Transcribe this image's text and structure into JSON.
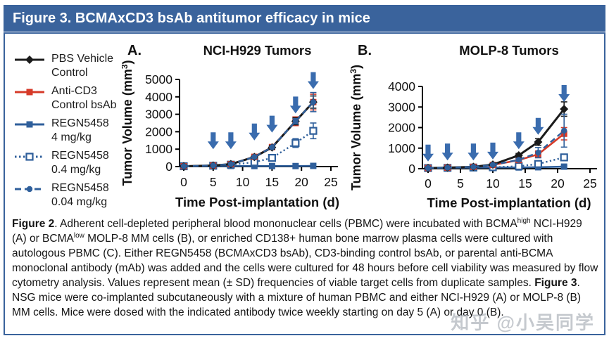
{
  "title_bar": {
    "text": "Figure 3. BCMAxCD3 bsAb antitumor efficacy in mice"
  },
  "colors": {
    "frame_blue": "#3a639c",
    "series_black": "#1b1b1b",
    "series_red": "#d63a28",
    "series_blue": "#2f5f9b",
    "arrow_blue": "#3a6cae"
  },
  "legend": {
    "items": [
      {
        "lines": [
          "PBS Vehicle",
          "Control"
        ],
        "color_key": "series_black",
        "line": "solid",
        "marker": "diamond"
      },
      {
        "lines": [
          "Anti-CD3",
          "Control bsAb"
        ],
        "color_key": "series_red",
        "line": "solid",
        "marker": "square"
      },
      {
        "lines": [
          "REGN5458",
          "4 mg/kg"
        ],
        "color_key": "series_blue",
        "line": "solid",
        "marker": "square"
      },
      {
        "lines": [
          "REGN5458",
          "0.4 mg/kg"
        ],
        "color_key": "series_blue",
        "line": "dotted",
        "marker": "square-open"
      },
      {
        "lines": [
          "REGN5458",
          "0.04 mg/kg"
        ],
        "color_key": "series_blue",
        "line": "dashed",
        "marker": "circle"
      }
    ]
  },
  "chart_data": [
    {
      "type": "line",
      "panel": "A.",
      "title": "NCI-H929 Tumors",
      "xlabel": "Time Post-implantation (d)",
      "ylabel": "Tumor Volume (mm³)",
      "xlim": [
        0,
        25
      ],
      "ylim": [
        0,
        5000
      ],
      "xticks": [
        0,
        5,
        10,
        15,
        20,
        25
      ],
      "yticks": [
        0,
        1000,
        2000,
        3000,
        4000,
        5000
      ],
      "grid": false,
      "x": [
        0,
        5,
        8,
        12,
        15,
        19,
        22
      ],
      "dose_arrow_days": [
        5,
        8,
        12,
        15,
        19,
        22
      ],
      "dose_arrow_tip_y": [
        1000,
        1000,
        1500,
        1950,
        3050,
        4450
      ],
      "series": [
        {
          "name": "REGN5458 4 mg/kg",
          "color_key": "series_blue",
          "line": "solid",
          "marker": "square",
          "values": [
            20,
            25,
            35,
            30,
            30,
            30,
            40
          ],
          "errors": [
            0,
            0,
            0,
            0,
            0,
            0,
            0
          ]
        },
        {
          "name": "REGN5458 0.4 mg/kg",
          "color_key": "series_blue",
          "line": "dotted",
          "marker": "square-open",
          "values": [
            20,
            50,
            110,
            250,
            500,
            1350,
            2050
          ],
          "errors": [
            0,
            0,
            0,
            60,
            100,
            250,
            450
          ]
        },
        {
          "name": "Anti-CD3 Control bsAb",
          "color_key": "series_red",
          "line": "solid",
          "marker": "square",
          "values": [
            20,
            60,
            140,
            560,
            1120,
            2600,
            3700
          ],
          "errors": [
            0,
            0,
            0,
            60,
            120,
            250,
            450
          ]
        },
        {
          "name": "PBS Vehicle Control",
          "color_key": "series_black",
          "line": "solid",
          "marker": "diamond",
          "values": [
            20,
            60,
            140,
            550,
            1100,
            2600,
            3700
          ],
          "errors": [
            0,
            0,
            0,
            50,
            100,
            200,
            350
          ]
        },
        {
          "name": "REGN5458 0.04 mg/kg",
          "color_key": "series_blue",
          "line": "dashed",
          "marker": "circle",
          "values": [
            20,
            60,
            140,
            555,
            1110,
            2600,
            3700
          ],
          "errors": [
            0,
            0,
            0,
            0,
            0,
            150,
            550
          ]
        }
      ]
    },
    {
      "type": "line",
      "panel": "B.",
      "title": "MOLP-8 Tumors",
      "xlabel": "Time Post-implantation (d)",
      "ylabel": "Tumor Volume (mm³)",
      "xlim": [
        0,
        25
      ],
      "ylim": [
        0,
        4000
      ],
      "xticks": [
        0,
        5,
        10,
        15,
        20,
        25
      ],
      "yticks": [
        0,
        1000,
        2000,
        3000,
        4000
      ],
      "grid": false,
      "x": [
        0,
        3,
        7,
        10,
        14,
        17,
        21
      ],
      "dose_arrow_days": [
        0,
        3,
        7,
        10,
        14,
        17,
        21
      ],
      "dose_arrow_tip_y": [
        350,
        400,
        400,
        450,
        950,
        1650,
        3250
      ],
      "series": [
        {
          "name": "REGN5458 4 mg/kg",
          "color_key": "series_blue",
          "line": "solid",
          "marker": "square",
          "values": [
            30,
            40,
            55,
            60,
            60,
            70,
            100
          ],
          "errors": [
            0,
            0,
            0,
            0,
            0,
            0,
            50
          ]
        },
        {
          "name": "REGN5458 0.4 mg/kg",
          "color_key": "series_blue",
          "line": "dotted",
          "marker": "square-open",
          "values": [
            30,
            40,
            55,
            70,
            120,
            230,
            550
          ],
          "errors": [
            0,
            0,
            0,
            0,
            40,
            60,
            160
          ]
        },
        {
          "name": "Anti-CD3 Control bsAb",
          "color_key": "series_red",
          "line": "solid",
          "marker": "square",
          "values": [
            30,
            50,
            90,
            180,
            420,
            700,
            1700
          ],
          "errors": [
            0,
            0,
            0,
            40,
            80,
            160,
            300
          ]
        },
        {
          "name": "PBS Vehicle Control",
          "color_key": "series_black",
          "line": "solid",
          "marker": "diamond",
          "values": [
            30,
            50,
            90,
            200,
            650,
            1300,
            2900
          ],
          "errors": [
            0,
            0,
            0,
            40,
            90,
            160,
            350
          ]
        },
        {
          "name": "REGN5458 0.04 mg/kg",
          "color_key": "series_blue",
          "line": "dashed",
          "marker": "circle",
          "values": [
            30,
            50,
            90,
            185,
            430,
            780,
            1850
          ],
          "errors": [
            0,
            0,
            0,
            0,
            60,
            250,
            800
          ]
        }
      ]
    }
  ],
  "caption": {
    "segments": [
      {
        "text": "Figure 2",
        "bold": true
      },
      {
        "text": ". Adherent cell-depleted peripheral blood mononuclear cells (PBMC) were incubated with BCMA"
      },
      {
        "text": "high",
        "sup": true
      },
      {
        "text": " NCI-H929 (A) or BCMA"
      },
      {
        "text": "low",
        "sup": true
      },
      {
        "text": " MOLP-8 MM cells (B), or enriched CD138+ human bone marrow plasma cells were cultured with autologous PBMC (C). Either REGN5458 (BCMAxCD3 bsAb), CD3-binding control bsAb, or parental anti-BCMA monoclonal antibody (mAb) was added and the cells were cultured for 48 hours before cell viability was measured by flow cytometry analysis. Values represent mean (± SD) frequencies of viable target cells from duplicate samples. "
      },
      {
        "text": "Figure 3",
        "bold": true
      },
      {
        "text": ". NSG mice were co-implanted subcutaneously with a mixture of human PBMC and either NCI-H929 (A) or MOLP-8 (B) MM cells. Mice were dosed with the indicated antibody twice weekly starting on day 5 (A) or day 0 (B)."
      }
    ]
  },
  "watermark": {
    "text": "知乎 @小吴同学"
  }
}
